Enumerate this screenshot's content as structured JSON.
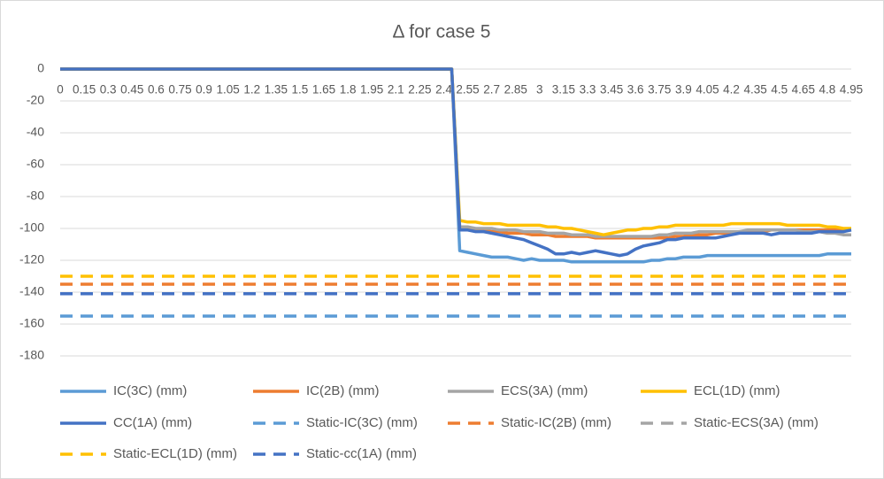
{
  "chart_data": {
    "type": "line",
    "title": "Δ for case 5",
    "categories": [
      "0",
      null,
      null,
      "0.15",
      null,
      null,
      "0.3",
      null,
      null,
      "0.45",
      null,
      null,
      "0.6",
      null,
      null,
      "0.75",
      null,
      null,
      "0.9",
      null,
      null,
      "1.05",
      null,
      null,
      "1.2",
      null,
      null,
      "1.35",
      null,
      null,
      "1.5",
      null,
      null,
      "1.65",
      null,
      null,
      "1.8",
      null,
      null,
      "1.95",
      null,
      null,
      "2.1",
      null,
      null,
      "2.25",
      null,
      null,
      "2.4",
      null,
      null,
      "2.55",
      null,
      null,
      "2.7",
      null,
      null,
      "2.85",
      null,
      null,
      "3",
      null,
      null,
      "3.15",
      null,
      null,
      "3.3",
      null,
      null,
      "3.45",
      null,
      null,
      "3.6",
      null,
      null,
      "3.75",
      null,
      null,
      "3.9",
      null,
      null,
      "4.05",
      null,
      null,
      "4.2",
      null,
      null,
      "4.35",
      null,
      null,
      "4.5",
      null,
      null,
      "4.65",
      null,
      null,
      "4.8",
      null,
      null,
      "4.95"
    ],
    "ylim": [
      -180,
      0
    ],
    "yticks": [
      0,
      -20,
      -40,
      -60,
      -80,
      -100,
      -120,
      -140,
      -160,
      -180
    ],
    "grid": true,
    "series": [
      {
        "name": "IC(3C) (mm)",
        "color": "#5b9bd5",
        "values": [
          0,
          0,
          0,
          0,
          0,
          0,
          0,
          0,
          0,
          0,
          0,
          0,
          0,
          0,
          0,
          0,
          0,
          0,
          0,
          0,
          0,
          0,
          0,
          0,
          0,
          0,
          0,
          0,
          0,
          0,
          0,
          0,
          0,
          0,
          0,
          0,
          0,
          0,
          0,
          0,
          0,
          0,
          0,
          0,
          0,
          0,
          0,
          0,
          0,
          0,
          -114,
          -115,
          -116,
          -117,
          -118,
          -118,
          -118,
          -119,
          -120,
          -119,
          -120,
          -120,
          -120,
          -120,
          -121,
          -121,
          -121,
          -121,
          -121,
          -121,
          -121,
          -121,
          -121,
          -121,
          -120,
          -120,
          -119,
          -119,
          -118,
          -118,
          -118,
          -117,
          -117,
          -117,
          -117,
          -117,
          -117,
          -117,
          -117,
          -117,
          -117,
          -117,
          -117,
          -117,
          -117,
          -117,
          -116,
          -116,
          -116,
          -116
        ]
      },
      {
        "name": "IC(2B) (mm)",
        "color": "#ed7d31",
        "values": [
          0,
          0,
          0,
          0,
          0,
          0,
          0,
          0,
          0,
          0,
          0,
          0,
          0,
          0,
          0,
          0,
          0,
          0,
          0,
          0,
          0,
          0,
          0,
          0,
          0,
          0,
          0,
          0,
          0,
          0,
          0,
          0,
          0,
          0,
          0,
          0,
          0,
          0,
          0,
          0,
          0,
          0,
          0,
          0,
          0,
          0,
          0,
          0,
          0,
          0,
          -100,
          -100,
          -101,
          -101,
          -102,
          -102,
          -103,
          -103,
          -103,
          -104,
          -104,
          -104,
          -105,
          -105,
          -105,
          -105,
          -105,
          -106,
          -106,
          -106,
          -106,
          -106,
          -106,
          -106,
          -106,
          -106,
          -106,
          -105,
          -105,
          -104,
          -104,
          -104,
          -103,
          -103,
          -103,
          -102,
          -102,
          -102,
          -102,
          -101,
          -101,
          -101,
          -101,
          -101,
          -101,
          -101,
          -101,
          -101,
          -101,
          -101
        ]
      },
      {
        "name": "ECS(3A) (mm)",
        "color": "#a5a5a5",
        "values": [
          0,
          0,
          0,
          0,
          0,
          0,
          0,
          0,
          0,
          0,
          0,
          0,
          0,
          0,
          0,
          0,
          0,
          0,
          0,
          0,
          0,
          0,
          0,
          0,
          0,
          0,
          0,
          0,
          0,
          0,
          0,
          0,
          0,
          0,
          0,
          0,
          0,
          0,
          0,
          0,
          0,
          0,
          0,
          0,
          0,
          0,
          0,
          0,
          0,
          0,
          -99,
          -99,
          -100,
          -100,
          -100,
          -101,
          -101,
          -101,
          -102,
          -102,
          -102,
          -103,
          -103,
          -103,
          -104,
          -104,
          -104,
          -105,
          -105,
          -105,
          -105,
          -105,
          -105,
          -105,
          -105,
          -104,
          -104,
          -103,
          -103,
          -103,
          -102,
          -102,
          -102,
          -102,
          -102,
          -102,
          -101,
          -101,
          -101,
          -101,
          -101,
          -101,
          -101,
          -102,
          -102,
          -102,
          -103,
          -103,
          -104,
          -104
        ]
      },
      {
        "name": "ECL(1D) (mm)",
        "color": "#ffc000",
        "values": [
          0,
          0,
          0,
          0,
          0,
          0,
          0,
          0,
          0,
          0,
          0,
          0,
          0,
          0,
          0,
          0,
          0,
          0,
          0,
          0,
          0,
          0,
          0,
          0,
          0,
          0,
          0,
          0,
          0,
          0,
          0,
          0,
          0,
          0,
          0,
          0,
          0,
          0,
          0,
          0,
          0,
          0,
          0,
          0,
          0,
          0,
          0,
          0,
          0,
          0,
          -95,
          -96,
          -96,
          -97,
          -97,
          -97,
          -98,
          -98,
          -98,
          -98,
          -98,
          -99,
          -99,
          -100,
          -100,
          -101,
          -102,
          -103,
          -104,
          -103,
          -102,
          -101,
          -101,
          -100,
          -100,
          -99,
          -99,
          -98,
          -98,
          -98,
          -98,
          -98,
          -98,
          -98,
          -97,
          -97,
          -97,
          -97,
          -97,
          -97,
          -97,
          -98,
          -98,
          -98,
          -98,
          -98,
          -99,
          -99,
          -100,
          -100
        ]
      },
      {
        "name": "CC(1A) (mm)",
        "color": "#4472c4",
        "values": [
          0,
          0,
          0,
          0,
          0,
          0,
          0,
          0,
          0,
          0,
          0,
          0,
          0,
          0,
          0,
          0,
          0,
          0,
          0,
          0,
          0,
          0,
          0,
          0,
          0,
          0,
          0,
          0,
          0,
          0,
          0,
          0,
          0,
          0,
          0,
          0,
          0,
          0,
          0,
          0,
          0,
          0,
          0,
          0,
          0,
          0,
          0,
          0,
          0,
          0,
          -101,
          -101,
          -102,
          -102,
          -103,
          -104,
          -105,
          -106,
          -107,
          -109,
          -111,
          -113,
          -116,
          -116,
          -115,
          -116,
          -115,
          -114,
          -115,
          -116,
          -117,
          -116,
          -113,
          -111,
          -110,
          -109,
          -107,
          -107,
          -106,
          -106,
          -106,
          -106,
          -106,
          -105,
          -104,
          -103,
          -103,
          -103,
          -103,
          -104,
          -103,
          -103,
          -103,
          -103,
          -103,
          -102,
          -102,
          -102,
          -102,
          -101
        ]
      },
      {
        "name": "Static-IC(3C) (mm)",
        "color": "#5b9bd5",
        "dashed": true,
        "value": -155
      },
      {
        "name": "Static-IC(2B) (mm)",
        "color": "#ed7d31",
        "dashed": true,
        "value": -135
      },
      {
        "name": "Static-ECS(3A) (mm)",
        "color": "#a5a5a5",
        "dashed": true,
        "value": -141
      },
      {
        "name": "Static-ECL(1D) (mm)",
        "color": "#ffc000",
        "dashed": true,
        "value": -130
      },
      {
        "name": "Static-cc(1A) (mm)",
        "color": "#4472c4",
        "dashed": true,
        "value": -141
      }
    ]
  }
}
